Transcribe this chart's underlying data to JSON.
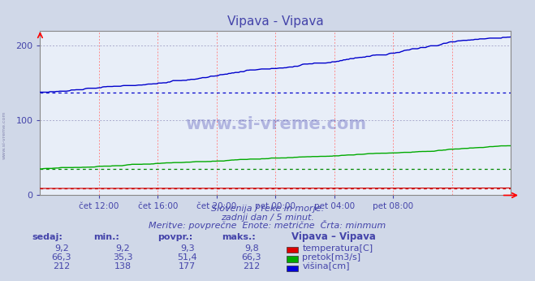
{
  "title": "Vipava - Vipava",
  "background_color": "#d0d8e8",
  "plot_bg_color": "#e8eef8",
  "x_tick_labels": [
    "čet 12:00",
    "čet 16:00",
    "čet 20:00",
    "pet 00:00",
    "pet 04:00",
    "pet 08:00"
  ],
  "x_tick_positions": [
    0.125,
    0.25,
    0.375,
    0.5,
    0.625,
    0.75
  ],
  "ylim": [
    0,
    220
  ],
  "yticks": [
    0,
    100,
    200
  ],
  "subtitle1": "Slovenija / reke in morje.",
  "subtitle2": "zadnji dan / 5 minut.",
  "subtitle3": "Meritve: povprečne  Enote: metrične  Črta: minmum",
  "text_color": "#4444aa",
  "table_headers": [
    "sedaj:",
    "min.:",
    "povpr.:",
    "maks.:"
  ],
  "table_rows": [
    {
      "sedaj": "9,2",
      "min": "9,2",
      "povpr": "9,3",
      "maks": "9,8",
      "color": "#dd0000",
      "label": "temperatura[C]"
    },
    {
      "sedaj": "66,3",
      "min": "35,3",
      "povpr": "51,4",
      "maks": "66,3",
      "color": "#00aa00",
      "label": "pretok[m3/s]"
    },
    {
      "sedaj": "212",
      "min": "138",
      "povpr": "177",
      "maks": "212",
      "color": "#0000dd",
      "label": "višina[cm]"
    }
  ],
  "station_label": "Vipava – Vipava",
  "temp_min": 9.2,
  "temp_max": 9.8,
  "pretok_min": 35.3,
  "pretok_max": 66.3,
  "visina_min": 138,
  "visina_max": 212,
  "n_points": 288
}
